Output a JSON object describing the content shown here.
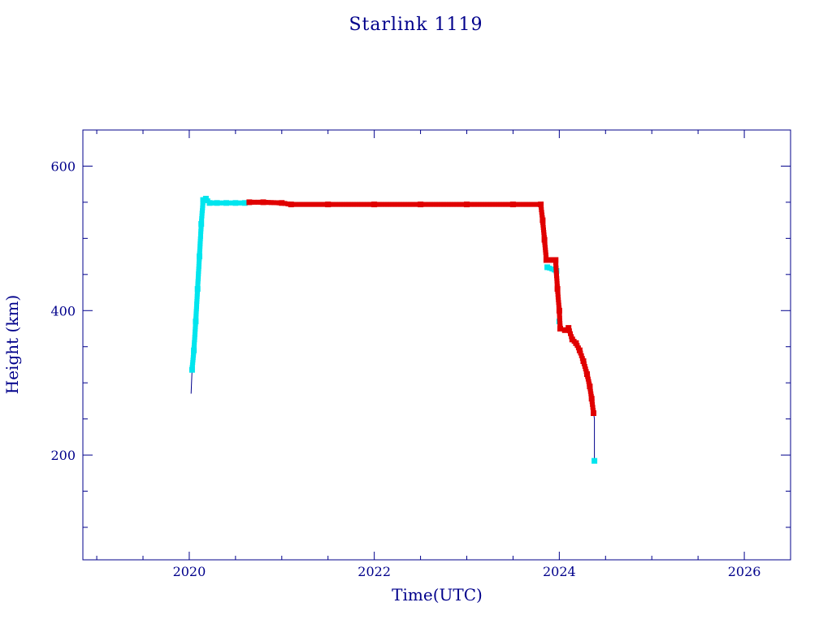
{
  "chart_data": {
    "type": "scatter",
    "title": "Starlink 1119",
    "xlabel": "Time(UTC)",
    "ylabel": "Height (km)",
    "xlim": [
      2018.85,
      2026.5
    ],
    "ylim": [
      55,
      650
    ],
    "x_ticks": [
      2020,
      2022,
      2024,
      2026
    ],
    "x_tick_labels": [
      "2020",
      "2022",
      "2024",
      "2026"
    ],
    "y_ticks": [
      200,
      400,
      600
    ],
    "y_tick_labels": [
      "200",
      "400",
      "600"
    ],
    "grid": false,
    "legend": "none",
    "colors": {
      "axes": "#00008b",
      "line": "#00008b",
      "cyan_points": "#00e5ee",
      "red_points": "#e00000"
    },
    "series": [
      {
        "color_key": "cyan_points",
        "points": [
          [
            2020.03,
            318
          ],
          [
            2020.05,
            345
          ],
          [
            2020.07,
            385
          ],
          [
            2020.09,
            430
          ],
          [
            2020.11,
            475
          ],
          [
            2020.13,
            520
          ],
          [
            2020.15,
            553
          ],
          [
            2020.18,
            555
          ],
          [
            2020.22,
            549
          ],
          [
            2020.3,
            549
          ],
          [
            2020.4,
            549
          ],
          [
            2020.5,
            549
          ],
          [
            2020.6,
            549
          ],
          [
            2023.87,
            460
          ],
          [
            2023.97,
            455
          ],
          [
            2024.0,
            385
          ],
          [
            2024.38,
            192
          ]
        ]
      },
      {
        "color_key": "red_points",
        "points": [
          [
            2020.65,
            550
          ],
          [
            2020.8,
            550
          ],
          [
            2021.0,
            549
          ],
          [
            2021.1,
            547
          ],
          [
            2021.5,
            547
          ],
          [
            2022.0,
            547
          ],
          [
            2022.5,
            547
          ],
          [
            2023.0,
            547
          ],
          [
            2023.5,
            547
          ],
          [
            2023.8,
            547
          ],
          [
            2023.82,
            525
          ],
          [
            2023.84,
            498
          ],
          [
            2023.86,
            470
          ],
          [
            2023.92,
            470
          ],
          [
            2023.96,
            470
          ],
          [
            2023.98,
            430
          ],
          [
            2024.0,
            400
          ],
          [
            2024.01,
            375
          ],
          [
            2024.06,
            373
          ],
          [
            2024.1,
            376
          ],
          [
            2024.14,
            360
          ],
          [
            2024.18,
            355
          ],
          [
            2024.22,
            345
          ],
          [
            2024.26,
            330
          ],
          [
            2024.3,
            312
          ],
          [
            2024.33,
            295
          ],
          [
            2024.35,
            278
          ],
          [
            2024.37,
            258
          ]
        ]
      }
    ],
    "line_path": [
      [
        2020.02,
        285
      ],
      [
        2020.03,
        318
      ],
      [
        2020.07,
        385
      ],
      [
        2020.11,
        475
      ],
      [
        2020.15,
        553
      ],
      [
        2020.18,
        555
      ],
      [
        2020.22,
        549
      ],
      [
        2021.0,
        549
      ],
      [
        2021.1,
        547
      ],
      [
        2023.8,
        547
      ],
      [
        2023.86,
        470
      ],
      [
        2023.96,
        470
      ],
      [
        2024.01,
        375
      ],
      [
        2024.1,
        376
      ],
      [
        2024.14,
        360
      ],
      [
        2024.26,
        330
      ],
      [
        2024.35,
        278
      ],
      [
        2024.38,
        250
      ],
      [
        2024.38,
        192
      ]
    ]
  }
}
